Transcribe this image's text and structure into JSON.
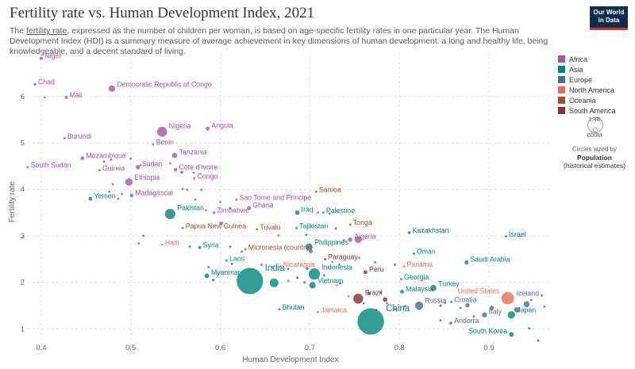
{
  "header": {
    "title": "Fertility rate vs. Human Development Index, 2021",
    "subtitle_link": "fertility rate",
    "subtitle_pre": "The ",
    "subtitle_post": ", expressed as the number of children per woman, is based on age-specific fertility rates in one particular year. The Human Development Index (HDI) is a summary measure of average achievement in key dimensions of human development: a long and healthy life, being knowledgeable, and a decent standard of living.",
    "logo_line1": "Our World",
    "logo_line2": "in Data"
  },
  "legend": {
    "items": [
      {
        "label": "Africa",
        "color": "#a2559c"
      },
      {
        "label": "Asia",
        "color": "#00847e"
      },
      {
        "label": "Europe",
        "color": "#4c6a9c"
      },
      {
        "label": "North America",
        "color": "#e56e5a"
      },
      {
        "label": "Oceania",
        "color": "#9a5129"
      },
      {
        "label": "South America",
        "color": "#883039"
      }
    ],
    "size_big_label": "1.4B",
    "size_small_label": "600M",
    "size_caption": "Circles sized by",
    "size_var": "Population",
    "size_var_note": "(historical estimates)"
  },
  "chart_data": {
    "type": "scatter",
    "xlabel": "Human Development Index",
    "ylabel": "Fertility rate",
    "xlim": [
      0.385,
      0.97
    ],
    "ylim": [
      0.75,
      6.95
    ],
    "xticks": [
      "0.4",
      "0.5",
      "0.6",
      "0.7",
      "0.8",
      "0.9"
    ],
    "yticks": [
      "1",
      "2",
      "3",
      "4",
      "5",
      "6"
    ],
    "grid": "horizontal dashed",
    "continent_colors": {
      "Africa": "#a2559c",
      "Asia": "#00847e",
      "Europe": "#4c6a9c",
      "North America": "#e56e5a",
      "Oceania": "#9a5129",
      "South America": "#883039"
    },
    "points": [
      {
        "label": "Niger",
        "x": 0.4,
        "y": 6.82,
        "continent": "Africa",
        "pop_m": 25
      },
      {
        "label": "Chad",
        "x": 0.393,
        "y": 6.26,
        "continent": "Africa",
        "pop_m": 17
      },
      {
        "label": "",
        "x": 0.404,
        "y": 5.98,
        "continent": "Africa",
        "pop_m": 8
      },
      {
        "label": "Mali",
        "x": 0.428,
        "y": 5.98,
        "continent": "Africa",
        "pop_m": 22
      },
      {
        "label": "Democratic Republic of Congo",
        "x": 0.479,
        "y": 6.17,
        "continent": "Africa",
        "pop_m": 95
      },
      {
        "label": "Angola",
        "x": 0.586,
        "y": 5.31,
        "continent": "Africa",
        "pop_m": 35
      },
      {
        "label": "Nigeria",
        "x": 0.535,
        "y": 5.24,
        "continent": "Africa",
        "pop_m": 213
      },
      {
        "label": "Benin",
        "x": 0.525,
        "y": 4.97,
        "continent": "Africa",
        "pop_m": 13
      },
      {
        "label": "Burundi",
        "x": 0.426,
        "y": 5.1,
        "continent": "Africa",
        "pop_m": 12
      },
      {
        "label": "Tanzania",
        "x": 0.549,
        "y": 4.73,
        "continent": "Africa",
        "pop_m": 63
      },
      {
        "label": "Mozambique",
        "x": 0.446,
        "y": 4.67,
        "continent": "Africa",
        "pop_m": 32
      },
      {
        "label": "Sudan",
        "x": 0.508,
        "y": 4.48,
        "continent": "Africa",
        "pop_m": 46
      },
      {
        "label": "Guinea",
        "x": 0.465,
        "y": 4.41,
        "continent": "Africa",
        "pop_m": 14
      },
      {
        "label": "Cote d'Ivoire",
        "x": 0.55,
        "y": 4.42,
        "continent": "Africa",
        "pop_m": 27
      },
      {
        "label": "South Sudan",
        "x": 0.385,
        "y": 4.48,
        "continent": "Africa",
        "pop_m": 11
      },
      {
        "label": "Congo",
        "x": 0.571,
        "y": 4.24,
        "continent": "Africa",
        "pop_m": 6
      },
      {
        "label": "Ethiopia",
        "x": 0.498,
        "y": 4.16,
        "continent": "Africa",
        "pop_m": 120
      },
      {
        "label": "Madagascar",
        "x": 0.501,
        "y": 3.87,
        "continent": "Africa",
        "pop_m": 29
      },
      {
        "label": "Yemen",
        "x": 0.455,
        "y": 3.8,
        "continent": "Asia",
        "pop_m": 33
      },
      {
        "label": "Samoa",
        "x": 0.707,
        "y": 3.95,
        "continent": "Oceania",
        "pop_m": 0.2
      },
      {
        "label": "Sao Tome and Principe",
        "x": 0.618,
        "y": 3.78,
        "continent": "Africa",
        "pop_m": 0.2
      },
      {
        "label": "Zimbabwe",
        "x": 0.593,
        "y": 3.5,
        "continent": "Africa",
        "pop_m": 16
      },
      {
        "label": "Ghana",
        "x": 0.632,
        "y": 3.6,
        "continent": "Africa",
        "pop_m": 33
      },
      {
        "label": "Pakistan",
        "x": 0.544,
        "y": 3.47,
        "continent": "Asia",
        "pop_m": 231
      },
      {
        "label": "Iraq",
        "x": 0.686,
        "y": 3.5,
        "continent": "Asia",
        "pop_m": 43
      },
      {
        "label": "Palestine",
        "x": 0.715,
        "y": 3.5,
        "continent": "Asia",
        "pop_m": 5
      },
      {
        "label": "Papua New Guinea",
        "x": 0.558,
        "y": 3.17,
        "continent": "Oceania",
        "pop_m": 10
      },
      {
        "label": "Tuvalu",
        "x": 0.641,
        "y": 3.14,
        "continent": "Oceania",
        "pop_m": 0.01
      },
      {
        "label": "Tajikistan",
        "x": 0.685,
        "y": 3.17,
        "continent": "Asia",
        "pop_m": 10
      },
      {
        "label": "Tonga",
        "x": 0.745,
        "y": 3.24,
        "continent": "Oceania",
        "pop_m": 0.1
      },
      {
        "label": "Kazakhstan",
        "x": 0.811,
        "y": 3.07,
        "continent": "Asia",
        "pop_m": 19
      },
      {
        "label": "Israel",
        "x": 0.919,
        "y": 2.99,
        "continent": "Asia",
        "pop_m": 9
      },
      {
        "label": "Algeria",
        "x": 0.745,
        "y": 2.92,
        "continent": "Africa",
        "pop_m": 44
      },
      {
        "label": "Philippines",
        "x": 0.699,
        "y": 2.76,
        "continent": "Asia",
        "pop_m": 114
      },
      {
        "label": "Haiti",
        "x": 0.535,
        "y": 2.81,
        "continent": "North America",
        "pop_m": 11
      },
      {
        "label": "Syria",
        "x": 0.577,
        "y": 2.75,
        "continent": "Asia",
        "pop_m": 21
      },
      {
        "label": "Micronesia (country)",
        "x": 0.628,
        "y": 2.71,
        "continent": "Oceania",
        "pop_m": 0.1
      },
      {
        "label": "Oman",
        "x": 0.816,
        "y": 2.62,
        "continent": "Asia",
        "pop_m": 5
      },
      {
        "label": "Paraguay",
        "x": 0.717,
        "y": 2.5,
        "continent": "South America",
        "pop_m": 7
      },
      {
        "label": "Saudi Arabia",
        "x": 0.875,
        "y": 2.43,
        "continent": "Asia",
        "pop_m": 36
      },
      {
        "label": "Laos",
        "x": 0.607,
        "y": 2.47,
        "continent": "Asia",
        "pop_m": 7
      },
      {
        "label": "Nicaragua",
        "x": 0.667,
        "y": 2.34,
        "continent": "North America",
        "pop_m": 7
      },
      {
        "label": "Panama",
        "x": 0.805,
        "y": 2.34,
        "continent": "North America",
        "pop_m": 4
      },
      {
        "label": "Peru",
        "x": 0.762,
        "y": 2.22,
        "continent": "South America",
        "pop_m": 34
      },
      {
        "label": "Myanmar",
        "x": 0.585,
        "y": 2.14,
        "continent": "Asia",
        "pop_m": 54
      },
      {
        "label": "India",
        "x": 0.633,
        "y": 2.03,
        "continent": "Asia",
        "pop_m": 1407
      },
      {
        "label": "Indonesia",
        "x": 0.705,
        "y": 2.18,
        "continent": "Asia",
        "pop_m": 274
      },
      {
        "label": "Georgia",
        "x": 0.802,
        "y": 2.07,
        "continent": "Asia",
        "pop_m": 4
      },
      {
        "label": "Vietnam",
        "x": 0.703,
        "y": 1.94,
        "continent": "Asia",
        "pop_m": 98
      },
      {
        "label": "Turkey",
        "x": 0.838,
        "y": 1.88,
        "continent": "Asia",
        "pop_m": 85
      },
      {
        "label": "Malaysia",
        "x": 0.803,
        "y": 1.8,
        "continent": "Asia",
        "pop_m": 33
      },
      {
        "label": "United States",
        "x": 0.921,
        "y": 1.66,
        "continent": "North America",
        "pop_m": 336
      },
      {
        "label": "Iceland",
        "x": 0.959,
        "y": 1.72,
        "continent": "Europe",
        "pop_m": 0.4
      },
      {
        "label": "Brazil",
        "x": 0.754,
        "y": 1.65,
        "continent": "South America",
        "pop_m": 214
      },
      {
        "label": "Russia",
        "x": 0.822,
        "y": 1.5,
        "continent": "Europe",
        "pop_m": 145
      },
      {
        "label": "Croatia",
        "x": 0.858,
        "y": 1.58,
        "continent": "Europe",
        "pop_m": 4
      },
      {
        "label": "Bhutan",
        "x": 0.666,
        "y": 1.42,
        "continent": "Asia",
        "pop_m": 0.8
      },
      {
        "label": "Jamaica",
        "x": 0.709,
        "y": 1.36,
        "continent": "North America",
        "pop_m": 3
      },
      {
        "label": "China",
        "x": 0.768,
        "y": 1.16,
        "continent": "Asia",
        "pop_m": 1426
      },
      {
        "label": "Italy",
        "x": 0.895,
        "y": 1.3,
        "continent": "Europe",
        "pop_m": 59
      },
      {
        "label": "Japan",
        "x": 0.925,
        "y": 1.3,
        "continent": "Asia",
        "pop_m": 124
      },
      {
        "label": "Andorra",
        "x": 0.858,
        "y": 1.13,
        "continent": "Europe",
        "pop_m": 0.08
      },
      {
        "label": "South Korea",
        "x": 0.925,
        "y": 0.88,
        "continent": "Asia",
        "pop_m": 52
      },
      {
        "label": "",
        "x": 0.931,
        "y": 1.41,
        "continent": "Europe",
        "pop_m": 68
      },
      {
        "label": "",
        "x": 0.942,
        "y": 1.53,
        "continent": "Europe",
        "pop_m": 83
      },
      {
        "label": "",
        "x": 0.947,
        "y": 1.62,
        "continent": "Europe",
        "pop_m": 10
      },
      {
        "label": "",
        "x": 0.962,
        "y": 1.48,
        "continent": "Europe",
        "pop_m": 5
      },
      {
        "label": "",
        "x": 0.955,
        "y": 0.75,
        "continent": "Asia",
        "pop_m": 6
      },
      {
        "label": "",
        "x": 0.945,
        "y": 1.01,
        "continent": "Asia",
        "pop_m": 6
      },
      {
        "label": "",
        "x": 0.903,
        "y": 1.45,
        "continent": "Europe",
        "pop_m": 47
      },
      {
        "label": "",
        "x": 0.883,
        "y": 1.27,
        "continent": "Europe",
        "pop_m": 5
      },
      {
        "label": "",
        "x": 0.876,
        "y": 1.51,
        "continent": "Europe",
        "pop_m": 38
      },
      {
        "label": "",
        "x": 0.868,
        "y": 1.45,
        "continent": "Europe",
        "pop_m": 10
      },
      {
        "label": "",
        "x": 0.851,
        "y": 1.56,
        "continent": "Europe",
        "pop_m": 3
      },
      {
        "label": "",
        "x": 0.846,
        "y": 1.5,
        "continent": "South America",
        "pop_m": 3
      },
      {
        "label": "",
        "x": 0.846,
        "y": 1.18,
        "continent": "Europe",
        "pop_m": 2
      },
      {
        "label": "",
        "x": 0.857,
        "y": 1.12,
        "continent": "Europe",
        "pop_m": 19
      },
      {
        "label": "",
        "x": 0.786,
        "y": 1.55,
        "continent": "Europe",
        "pop_m": 3
      },
      {
        "label": "",
        "x": 0.795,
        "y": 1.42,
        "continent": "Europe",
        "pop_m": 7
      },
      {
        "label": "",
        "x": 0.806,
        "y": 1.49,
        "continent": "Europe",
        "pop_m": 2
      },
      {
        "label": "",
        "x": 0.774,
        "y": 1.4,
        "continent": "South America",
        "pop_m": 17
      },
      {
        "label": "",
        "x": 0.784,
        "y": 1.63,
        "continent": "South America",
        "pop_m": 51
      },
      {
        "label": "",
        "x": 0.779,
        "y": 1.78,
        "continent": "Asia",
        "pop_m": 3
      },
      {
        "label": "",
        "x": 0.766,
        "y": 1.76,
        "continent": "Asia",
        "pop_m": 22
      },
      {
        "label": "",
        "x": 0.76,
        "y": 1.55,
        "continent": "Europe",
        "pop_m": 2
      },
      {
        "label": "",
        "x": 0.743,
        "y": 1.7,
        "continent": "North America",
        "pop_m": 2
      },
      {
        "label": "",
        "x": 0.734,
        "y": 1.98,
        "continent": "Asia",
        "pop_m": 3
      },
      {
        "label": "",
        "x": 0.73,
        "y": 1.94,
        "continent": "North America",
        "pop_m": 1
      },
      {
        "label": "",
        "x": 0.716,
        "y": 2.15,
        "continent": "Asia",
        "pop_m": 10
      },
      {
        "label": "",
        "x": 0.686,
        "y": 2.1,
        "continent": "South America",
        "pop_m": 12
      },
      {
        "label": "",
        "x": 0.694,
        "y": 2.0,
        "continent": "Asia",
        "pop_m": 3
      },
      {
        "label": "",
        "x": 0.66,
        "y": 1.99,
        "continent": "Asia",
        "pop_m": 167
      },
      {
        "label": "",
        "x": 0.676,
        "y": 2.03,
        "continent": "North America",
        "pop_m": 17
      },
      {
        "label": "",
        "x": 0.646,
        "y": 2.38,
        "continent": "Africa",
        "pop_m": 1
      },
      {
        "label": "",
        "x": 0.659,
        "y": 2.33,
        "continent": "Africa",
        "pop_m": 3
      },
      {
        "label": "",
        "x": 0.676,
        "y": 2.29,
        "continent": "Asia",
        "pop_m": 2
      },
      {
        "label": "",
        "x": 0.697,
        "y": 2.3,
        "continent": "Asia",
        "pop_m": 19
      },
      {
        "label": "",
        "x": 0.725,
        "y": 2.44,
        "continent": "North America",
        "pop_m": 1
      },
      {
        "label": "",
        "x": 0.733,
        "y": 2.38,
        "continent": "Asia",
        "pop_m": 6
      },
      {
        "label": "",
        "x": 0.755,
        "y": 2.53,
        "continent": "Africa",
        "pop_m": 12
      },
      {
        "label": "",
        "x": 0.773,
        "y": 2.43,
        "continent": "Asia",
        "pop_m": 0.5
      },
      {
        "label": "",
        "x": 0.795,
        "y": 2.38,
        "continent": "Asia",
        "pop_m": 1.5
      },
      {
        "label": "",
        "x": 0.738,
        "y": 2.91,
        "continent": "Africa",
        "pop_m": 1
      },
      {
        "label": "",
        "x": 0.754,
        "y": 2.92,
        "continent": "Africa",
        "pop_m": 107
      },
      {
        "label": "",
        "x": 0.729,
        "y": 3.16,
        "continent": "Asia",
        "pop_m": 1
      },
      {
        "label": "",
        "x": 0.696,
        "y": 3.02,
        "continent": "Asia",
        "pop_m": 1
      },
      {
        "label": "",
        "x": 0.665,
        "y": 3.01,
        "continent": "Africa",
        "pop_m": 2
      },
      {
        "label": "",
        "x": 0.701,
        "y": 2.67,
        "continent": "Africa",
        "pop_m": 38
      },
      {
        "label": "",
        "x": 0.709,
        "y": 3.5,
        "continent": "Africa",
        "pop_m": 0.6
      },
      {
        "label": "",
        "x": 0.722,
        "y": 3.48,
        "continent": "Africa",
        "pop_m": 1.3
      },
      {
        "label": "",
        "x": 0.601,
        "y": 3.27,
        "continent": "Africa",
        "pop_m": 33
      },
      {
        "label": "",
        "x": 0.611,
        "y": 2.77,
        "continent": "Asia",
        "pop_m": 2
      },
      {
        "label": "",
        "x": 0.624,
        "y": 2.66,
        "continent": "Asia",
        "pop_m": 1.2
      },
      {
        "label": "",
        "x": 0.613,
        "y": 2.4,
        "continent": "Asia",
        "pop_m": 0.8
      },
      {
        "label": "",
        "x": 0.592,
        "y": 2.05,
        "continent": "Asia",
        "pop_m": 17
      },
      {
        "label": "",
        "x": 0.587,
        "y": 2.33,
        "continent": "Asia",
        "pop_m": 2
      },
      {
        "label": "",
        "x": 0.566,
        "y": 2.77,
        "continent": "Asia",
        "pop_m": 0.6
      },
      {
        "label": "",
        "x": 0.6,
        "y": 3.73,
        "continent": "Africa",
        "pop_m": 1.5
      },
      {
        "label": "",
        "x": 0.611,
        "y": 3.6,
        "continent": "Africa",
        "pop_m": 1.5
      },
      {
        "label": "",
        "x": 0.584,
        "y": 3.55,
        "continent": "Africa",
        "pop_m": 2.5
      },
      {
        "label": "",
        "x": 0.572,
        "y": 3.78,
        "continent": "Africa",
        "pop_m": 2
      },
      {
        "label": "",
        "x": 0.563,
        "y": 3.99,
        "continent": "Africa",
        "pop_m": 5
      },
      {
        "label": "",
        "x": 0.558,
        "y": 4.01,
        "continent": "Africa",
        "pop_m": 8
      },
      {
        "label": "",
        "x": 0.579,
        "y": 3.99,
        "continent": "Africa",
        "pop_m": 1
      },
      {
        "label": "",
        "x": 0.57,
        "y": 4.36,
        "continent": "Africa",
        "pop_m": 0.9
      },
      {
        "label": "",
        "x": 0.544,
        "y": 4.56,
        "continent": "Africa",
        "pop_m": 3
      },
      {
        "label": "",
        "x": 0.557,
        "y": 4.37,
        "continent": "Africa",
        "pop_m": 20
      },
      {
        "label": "",
        "x": 0.478,
        "y": 4.64,
        "continent": "Africa",
        "pop_m": 2
      },
      {
        "label": "",
        "x": 0.47,
        "y": 4.6,
        "continent": "Africa",
        "pop_m": 5
      },
      {
        "label": "",
        "x": 0.5,
        "y": 4.66,
        "continent": "Africa",
        "pop_m": 13
      },
      {
        "label": "",
        "x": 0.511,
        "y": 4.52,
        "continent": "Africa",
        "pop_m": 1.5
      },
      {
        "label": "",
        "x": 0.48,
        "y": 4.11,
        "continent": "Africa",
        "pop_m": 8
      },
      {
        "label": "",
        "x": 0.49,
        "y": 3.9,
        "continent": "Africa",
        "pop_m": 2
      },
      {
        "label": "",
        "x": 0.476,
        "y": 3.95,
        "continent": "Africa",
        "pop_m": 6
      },
      {
        "label": "",
        "x": 0.486,
        "y": 3.8,
        "continent": "Africa",
        "pop_m": 2
      },
      {
        "label": "",
        "x": 0.514,
        "y": 3.0,
        "continent": "Africa",
        "pop_m": 0.5
      },
      {
        "label": "",
        "x": 0.509,
        "y": 2.84,
        "continent": "Africa",
        "pop_m": 0.5
      }
    ]
  }
}
